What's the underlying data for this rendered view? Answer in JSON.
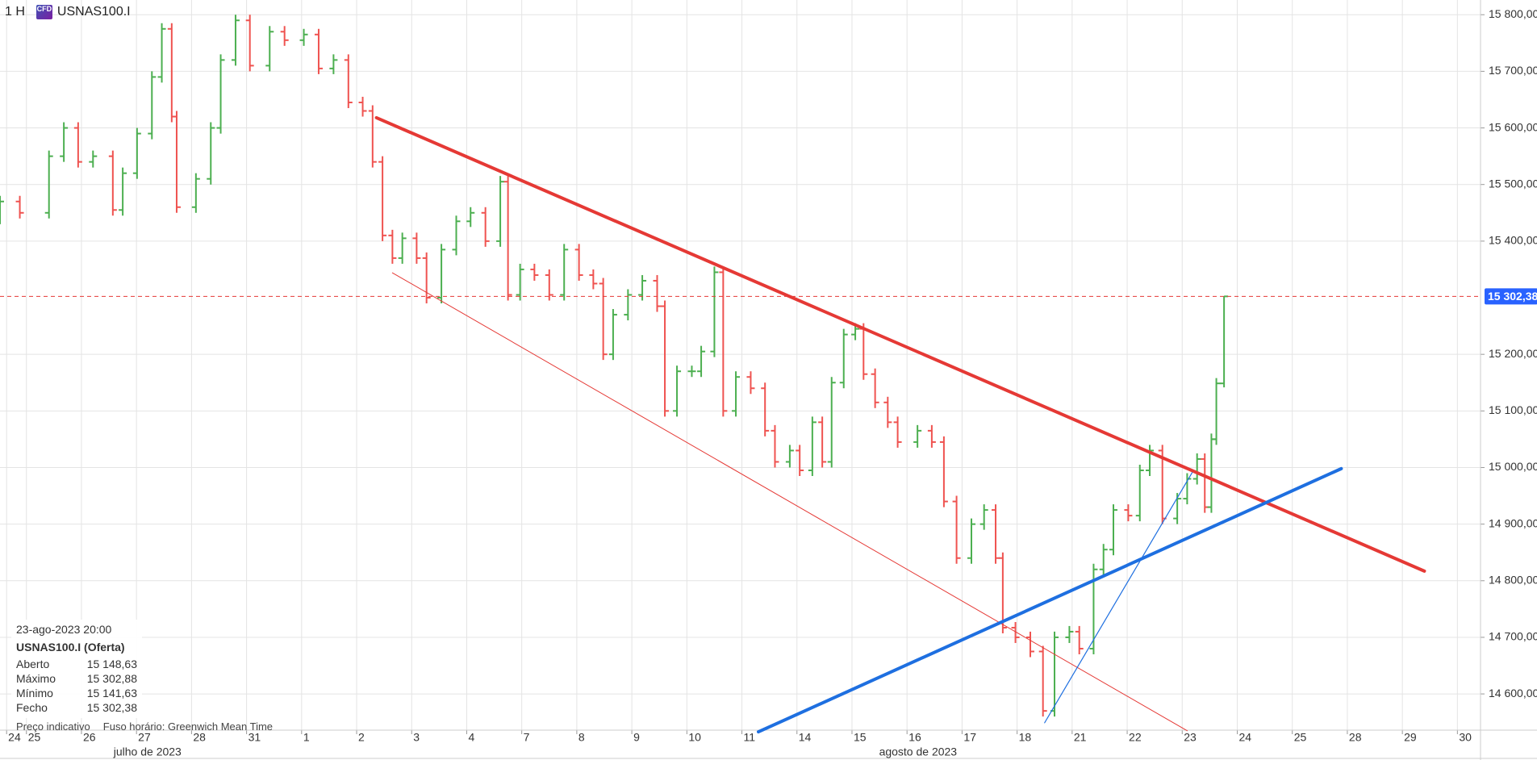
{
  "header": {
    "interval": "1 H",
    "icon": "CFD",
    "symbol": "USNAS100.I"
  },
  "info": {
    "date": "23-ago-2023 20:00",
    "symbol": "USNAS100.I (Oferta)",
    "rows": [
      [
        "Aberto",
        "15 148,63"
      ],
      [
        "Máximo",
        "15 302,88"
      ],
      [
        "Mínimo",
        "15 141,63"
      ],
      [
        "Fecho",
        "15 302,38"
      ]
    ]
  },
  "footer": {
    "note": "Preço indicativo",
    "timezone": "Fuso horário: Greenwich Mean Time"
  },
  "chart_data": {
    "type": "ohlc",
    "up_color": "#4caf50",
    "down_color": "#ef5350",
    "grid": true,
    "xlim": [
      -0.48,
      26.42
    ],
    "ylim": [
      14536,
      15826
    ],
    "xticks": [
      {
        "value": -0.36,
        "label": "24"
      },
      {
        "value": 0,
        "label": "25"
      },
      {
        "value": 1,
        "label": "26"
      },
      {
        "value": 2,
        "label": "27"
      },
      {
        "value": 3,
        "label": "28"
      },
      {
        "value": 4,
        "label": "31"
      },
      {
        "value": 5,
        "label": "1"
      },
      {
        "value": 6,
        "label": "2"
      },
      {
        "value": 7,
        "label": "3"
      },
      {
        "value": 8,
        "label": "4"
      },
      {
        "value": 9,
        "label": "7"
      },
      {
        "value": 10,
        "label": "8"
      },
      {
        "value": 11,
        "label": "9"
      },
      {
        "value": 12,
        "label": "10"
      },
      {
        "value": 13,
        "label": "11"
      },
      {
        "value": 14,
        "label": "14"
      },
      {
        "value": 15,
        "label": "15"
      },
      {
        "value": 16,
        "label": "16"
      },
      {
        "value": 17,
        "label": "17"
      },
      {
        "value": 18,
        "label": "18"
      },
      {
        "value": 19,
        "label": "21"
      },
      {
        "value": 20,
        "label": "22"
      },
      {
        "value": 21,
        "label": "23"
      },
      {
        "value": 22,
        "label": "24"
      },
      {
        "value": 23,
        "label": "25"
      },
      {
        "value": 24,
        "label": "28"
      },
      {
        "value": 25,
        "label": "29"
      },
      {
        "value": 26,
        "label": "30"
      }
    ],
    "months": [
      {
        "value": 2.2,
        "label": "julho de 2023"
      },
      {
        "value": 16.2,
        "label": "agosto de 2023"
      }
    ],
    "yticks": [
      {
        "value": 15800,
        "label": "15 800,00"
      },
      {
        "value": 15700,
        "label": "15 700,00"
      },
      {
        "value": 15600,
        "label": "15 600,00"
      },
      {
        "value": 15500,
        "label": "15 500,00"
      },
      {
        "value": 15400,
        "label": "15 400,00"
      },
      {
        "value": 15200,
        "label": "15 200,00"
      },
      {
        "value": 15100,
        "label": "15 100,00"
      },
      {
        "value": 15000,
        "label": "15 000,00"
      },
      {
        "value": 14900,
        "label": "14 900,00"
      },
      {
        "value": 14800,
        "label": "14 800,00"
      },
      {
        "value": 14700,
        "label": "14 700,00"
      },
      {
        "value": 14600,
        "label": "14 600,00"
      }
    ],
    "current_price": {
      "value": 15302.38,
      "label": "15 302,38",
      "color": "#e53935",
      "label_color": "#2962ff"
    },
    "x": [
      -0.48,
      -0.12,
      0.41,
      0.68,
      0.94,
      1.21,
      1.57,
      1.75,
      2.01,
      2.28,
      2.46,
      2.64,
      2.73,
      3.08,
      3.35,
      3.53,
      3.8,
      4.06,
      4.42,
      4.69,
      5.04,
      5.31,
      5.58,
      5.85,
      6.11,
      6.29,
      6.47,
      6.65,
      6.83,
      7.09,
      7.27,
      7.54,
      7.81,
      8.07,
      8.34,
      8.61,
      8.75,
      8.97,
      9.23,
      9.5,
      9.77,
      10.04,
      10.3,
      10.48,
      10.66,
      10.93,
      11.19,
      11.46,
      11.6,
      11.82,
      12.09,
      12.26,
      12.5,
      12.66,
      12.89,
      13.16,
      13.42,
      13.6,
      13.87,
      14.05,
      14.28,
      14.46,
      14.63,
      14.85,
      15.06,
      15.21,
      15.42,
      15.65,
      15.83,
      16.19,
      16.45,
      16.67,
      16.9,
      17.17,
      17.4,
      17.61,
      17.74,
      17.97,
      18.24,
      18.47,
      18.68,
      18.95,
      19.13,
      19.39,
      19.57,
      19.75,
      20.02,
      20.23,
      20.41,
      20.64,
      20.91,
      21.09,
      21.27,
      21.41,
      21.53,
      21.62,
      21.76
    ],
    "open": [
      15440,
      15470,
      15450,
      15550,
      15600,
      15540,
      15550,
      15455,
      15520,
      15590,
      15690,
      15775,
      15620,
      15460,
      15510,
      15600,
      15720,
      15790,
      15710,
      15770,
      15755,
      15765,
      15705,
      15720,
      15645,
      15630,
      15540,
      15410,
      15370,
      15405,
      15370,
      15300,
      15385,
      15435,
      15450,
      15400,
      15505,
      15305,
      15350,
      15340,
      15305,
      15385,
      15340,
      15325,
      15200,
      15270,
      15305,
      15330,
      15285,
      15100,
      15170,
      15170,
      15205,
      15345,
      15100,
      15160,
      15140,
      15065,
      15010,
      15030,
      14995,
      15080,
      15010,
      15150,
      15235,
      15245,
      15165,
      15115,
      15080,
      15045,
      15065,
      15045,
      14940,
      14840,
      14900,
      14925,
      14840,
      14717,
      14700,
      14675,
      14570,
      14700,
      14710,
      14680,
      14820,
      14855,
      14925,
      14915,
      14995,
      15030,
      14910,
      14945,
      14980,
      15015,
      14930,
      15050,
      15148.63
    ],
    "high": [
      15480,
      15480,
      15560,
      15610,
      15610,
      15560,
      15560,
      15530,
      15600,
      15700,
      15785,
      15785,
      15630,
      15520,
      15610,
      15730,
      15800,
      15800,
      15780,
      15780,
      15775,
      15775,
      15730,
      15730,
      15655,
      15640,
      15550,
      15420,
      15415,
      15415,
      15380,
      15395,
      15445,
      15460,
      15460,
      15515,
      15515,
      15360,
      15360,
      15350,
      15395,
      15395,
      15350,
      15335,
      15280,
      15315,
      15340,
      15340,
      15295,
      15180,
      15180,
      15215,
      15355,
      15355,
      15170,
      15170,
      15150,
      15075,
      15040,
      15040,
      15090,
      15090,
      15160,
      15245,
      15255,
      15255,
      15175,
      15125,
      15090,
      15075,
      15075,
      15055,
      14950,
      14910,
      14935,
      14935,
      14850,
      14727,
      14710,
      14685,
      14710,
      14720,
      14720,
      14830,
      14865,
      14935,
      14935,
      15005,
      15040,
      15040,
      14955,
      14990,
      15025,
      15025,
      15060,
      15158,
      15302.88
    ],
    "low": [
      15430,
      15440,
      15440,
      15540,
      15530,
      15530,
      15445,
      15445,
      15510,
      15580,
      15680,
      15610,
      15450,
      15450,
      15500,
      15590,
      15710,
      15700,
      15700,
      15745,
      15745,
      15695,
      15695,
      15635,
      15620,
      15530,
      15400,
      15360,
      15360,
      15360,
      15290,
      15290,
      15375,
      15425,
      15390,
      15390,
      15295,
      15295,
      15330,
      15295,
      15295,
      15330,
      15315,
      15190,
      15190,
      15260,
      15295,
      15275,
      15090,
      15090,
      15160,
      15160,
      15195,
      15090,
      15090,
      15130,
      15055,
      15000,
      15000,
      14985,
      14985,
      15000,
      15000,
      15140,
      15225,
      15155,
      15105,
      15070,
      15035,
      15035,
      15035,
      14930,
      14830,
      14830,
      14890,
      14830,
      14707,
      14690,
      14665,
      14560,
      14560,
      14690,
      14670,
      14670,
      14810,
      14845,
      14905,
      14905,
      14985,
      14900,
      14900,
      14935,
      14970,
      14920,
      14920,
      15040,
      15141.63
    ],
    "close": [
      15470,
      15450,
      15550,
      15600,
      15540,
      15550,
      15455,
      15520,
      15590,
      15690,
      15775,
      15620,
      15460,
      15510,
      15600,
      15720,
      15790,
      15710,
      15770,
      15755,
      15765,
      15705,
      15720,
      15645,
      15630,
      15540,
      15410,
      15370,
      15405,
      15370,
      15300,
      15385,
      15435,
      15450,
      15400,
      15505,
      15305,
      15350,
      15340,
      15305,
      15385,
      15340,
      15325,
      15200,
      15270,
      15305,
      15330,
      15285,
      15100,
      15170,
      15170,
      15205,
      15345,
      15100,
      15160,
      15140,
      15065,
      15010,
      15030,
      14995,
      15080,
      15010,
      15150,
      15235,
      15245,
      15165,
      15115,
      15080,
      15045,
      15065,
      15045,
      14940,
      14840,
      14900,
      14925,
      14840,
      14717,
      14700,
      14675,
      14570,
      14700,
      14710,
      14680,
      14820,
      14855,
      14925,
      14915,
      14995,
      15030,
      14910,
      14945,
      14980,
      15015,
      14930,
      15050,
      15148.63,
      15302.38
    ],
    "lines": [
      {
        "color": "#e53935",
        "width": 4,
        "x": [
          6.36,
          25.4
        ],
        "y": [
          15618,
          14817
        ]
      },
      {
        "color": "#e53935",
        "width": 1,
        "x": [
          6.65,
          21.09
        ],
        "y": [
          15344,
          14535
        ]
      },
      {
        "color": "#1e6fe0",
        "width": 4,
        "x": [
          13.3,
          23.89
        ],
        "y": [
          14533,
          14998
        ]
      },
      {
        "color": "#1e6fe0",
        "width": 1.2,
        "x": [
          18.5,
          21.18
        ],
        "y": [
          14549,
          14991
        ]
      }
    ]
  }
}
